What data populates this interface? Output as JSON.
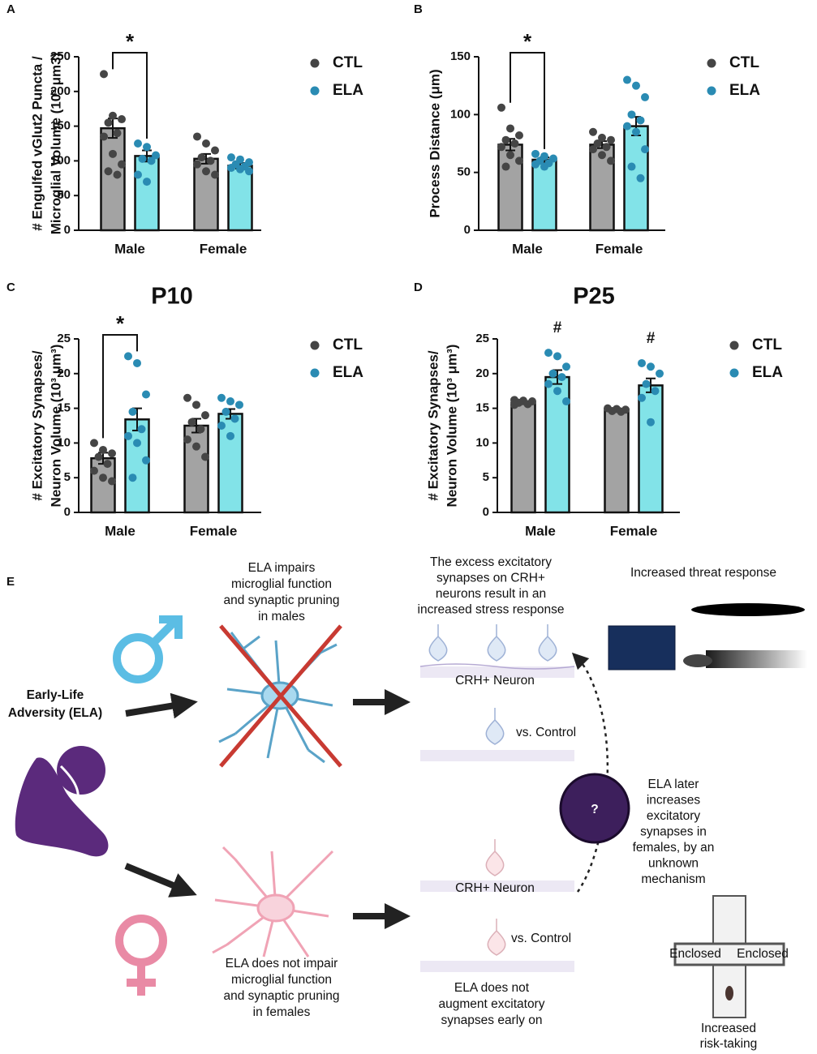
{
  "chart_data": [
    {
      "type": "bar",
      "panel_label": "A",
      "ylabel": [
        "# Engulfed vGlut2 Puncta /",
        "Microglial Volume (10³ μm3)"
      ],
      "categories": [
        "Male",
        "Female"
      ],
      "ylim": [
        0,
        250
      ],
      "yticks": [
        0,
        50,
        100,
        150,
        200,
        250
      ],
      "series": [
        {
          "name": "CTL",
          "color": "#454545",
          "bar_color": "#a3a3a3",
          "values": [
            147,
            103
          ],
          "errors": [
            14,
            7
          ],
          "points": [
            [
              225,
              165,
              160,
              155,
              140,
              135,
              110,
              95,
              85,
              80
            ],
            [
              135,
              125,
              115,
              105,
              100,
              95,
              85,
              80
            ]
          ]
        },
        {
          "name": "ELA",
          "color": "#2a8bb3",
          "bar_color": "#82e3e8",
          "values": [
            107,
            93
          ],
          "errors": [
            8,
            4
          ],
          "points": [
            [
              125,
              120,
              108,
              103,
              100,
              80,
              70
            ],
            [
              105,
              102,
              98,
              95,
              92,
              90,
              88,
              85
            ]
          ]
        }
      ],
      "annotations": [
        {
          "text": "*",
          "category": 0,
          "bracket": true
        }
      ]
    },
    {
      "type": "bar",
      "panel_label": "B",
      "ylabel": [
        "Process Distance (μm)"
      ],
      "categories": [
        "Male",
        "Female"
      ],
      "ylim": [
        0,
        150
      ],
      "yticks": [
        0,
        50,
        100,
        150
      ],
      "series": [
        {
          "name": "CTL",
          "color": "#454545",
          "bar_color": "#a3a3a3",
          "values": [
            74,
            74
          ],
          "errors": [
            5,
            3
          ],
          "points": [
            [
              106,
              88,
              82,
              78,
              75,
              72,
              65,
              60,
              55
            ],
            [
              85,
              80,
              78,
              75,
              72,
              70,
              65,
              60
            ]
          ]
        },
        {
          "name": "ELA",
          "color": "#2a8bb3",
          "bar_color": "#82e3e8",
          "values": [
            61,
            90
          ],
          "errors": [
            2,
            8
          ],
          "points": [
            [
              66,
              64,
              62,
              60,
              58,
              57,
              55
            ],
            [
              130,
              125,
              115,
              100,
              95,
              90,
              85,
              70,
              55,
              45
            ]
          ]
        }
      ],
      "annotations": [
        {
          "text": "*",
          "category": 0,
          "bracket": true
        }
      ]
    },
    {
      "type": "bar",
      "panel_label": "C",
      "title": "P10",
      "ylabel": [
        "# Excitatory Synapses/",
        "Neuron Volume (10³ μm³)"
      ],
      "categories": [
        "Male",
        "Female"
      ],
      "ylim": [
        0,
        25
      ],
      "yticks": [
        0,
        5,
        10,
        15,
        20,
        25
      ],
      "series": [
        {
          "name": "CTL",
          "color": "#454545",
          "bar_color": "#a3a3a3",
          "values": [
            7.8,
            12.5
          ],
          "errors": [
            0.8,
            1
          ],
          "points": [
            [
              10,
              9,
              8.5,
              8,
              7,
              6,
              5,
              4.5
            ],
            [
              16.5,
              15.5,
              14,
              13,
              12,
              10.5,
              9.5,
              8
            ]
          ]
        },
        {
          "name": "ELA",
          "color": "#2a8bb3",
          "bar_color": "#82e3e8",
          "values": [
            13.4,
            14.2
          ],
          "errors": [
            1.6,
            0.7
          ],
          "points": [
            [
              22.5,
              21.5,
              17,
              14.5,
              12,
              11,
              10,
              7.5,
              5
            ],
            [
              16.5,
              16,
              15.5,
              14.5,
              13.5,
              12.5,
              11
            ]
          ]
        }
      ],
      "annotations": [
        {
          "text": "*",
          "category": 0,
          "bracket": true
        }
      ]
    },
    {
      "type": "bar",
      "panel_label": "D",
      "title": "P25",
      "ylabel": [
        "# Excitatory Synapses/",
        "Neuron Volume (10³ μm³)"
      ],
      "categories": [
        "Male",
        "Female"
      ],
      "ylim": [
        0,
        25
      ],
      "yticks": [
        0,
        5,
        10,
        15,
        20,
        25
      ],
      "series": [
        {
          "name": "CTL",
          "color": "#454545",
          "bar_color": "#a3a3a3",
          "values": [
            15.8,
            14.8
          ],
          "errors": [
            0.2,
            0.2
          ],
          "points": [
            [
              16.2,
              16.1,
              16,
              15.8,
              15.6,
              15.5
            ],
            [
              15,
              14.9,
              14.8,
              14.6,
              14.5
            ]
          ]
        },
        {
          "name": "ELA",
          "color": "#2a8bb3",
          "bar_color": "#82e3e8",
          "values": [
            19.5,
            18.3
          ],
          "errors": [
            1,
            1
          ],
          "points": [
            [
              23,
              22.5,
              21,
              20,
              19.5,
              18.5,
              17.5,
              16
            ],
            [
              21.5,
              21,
              20,
              18.5,
              17.5,
              16.5,
              13
            ]
          ]
        }
      ],
      "annotations": [
        {
          "text": "#",
          "category": 0,
          "bracket": false
        },
        {
          "text": "#",
          "category": 1,
          "bracket": false
        }
      ]
    }
  ],
  "diagram": {
    "panel_label": "E",
    "source": [
      "Early-Life",
      "Adversity (ELA)"
    ],
    "male_text": [
      "ELA impairs",
      "microglial function",
      "and synaptic pruning",
      "in males"
    ],
    "female_text": [
      "ELA does not impair",
      "microglial function",
      "and synaptic pruning",
      "in females"
    ],
    "male_result": [
      "The excess excitatory",
      "synapses on CRH+",
      "neurons result in an",
      "increased stress response"
    ],
    "female_result": [
      "ELA does not",
      "augment excitatory",
      "synapses early on"
    ],
    "neuron_label_male": "CRH+ Neuron",
    "control_label_male": "vs. Control",
    "neuron_label_female": "CRH+ Neuron",
    "control_label_female": "vs. Control",
    "threat": "Increased threat response",
    "question": "?",
    "unknown": [
      "ELA later",
      "increases",
      "excitatory",
      "synapses in",
      "females, by an",
      "unknown",
      "mechanism"
    ],
    "maze_left": "Enclosed",
    "maze_right": "Enclosed",
    "risk": [
      "Increased",
      "risk-taking"
    ]
  }
}
